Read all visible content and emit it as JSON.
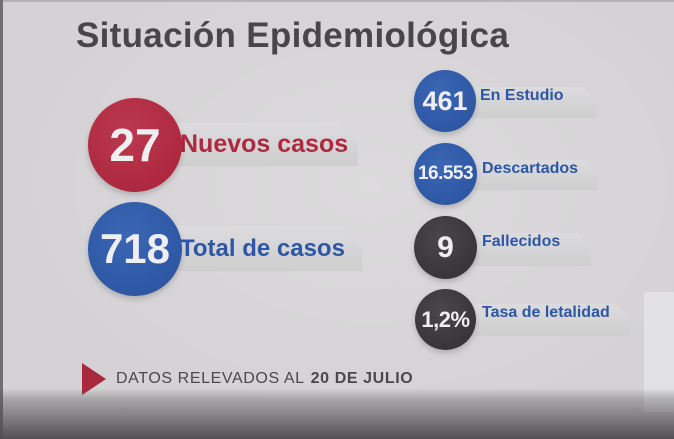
{
  "title": "Situación Epidemiológica",
  "stats_left": [
    {
      "value": "27",
      "label": "Nuevos casos"
    },
    {
      "value": "718",
      "label": "Total de casos"
    }
  ],
  "stats_right": [
    {
      "value": "461",
      "label": "En Estudio"
    },
    {
      "value": "16.553",
      "label": "Descartados"
    },
    {
      "value": "9",
      "label": "Fallecidos"
    },
    {
      "value": "1,2%",
      "label": "Tasa de letalidad"
    }
  ],
  "footer": {
    "prefix": "DATOS RELEVADOS AL",
    "date": "20 DE JULIO"
  },
  "colors": {
    "background": "#d4d2d4",
    "red": "#ae2940",
    "blue": "#2e58a4",
    "dark": "#39363a",
    "label_blue": "#2d57a5",
    "title_text": "#494649",
    "footer_text": "#4b484b"
  },
  "chart_data": {
    "type": "table",
    "title": "Situación Epidemiológica",
    "categories": [
      "Nuevos casos",
      "Total de casos",
      "En Estudio",
      "Descartados",
      "Fallecidos",
      "Tasa de letalidad"
    ],
    "values": [
      27,
      718,
      461,
      16553,
      9,
      "1,2%"
    ],
    "note": "DATOS RELEVADOS AL 20 DE JULIO"
  }
}
